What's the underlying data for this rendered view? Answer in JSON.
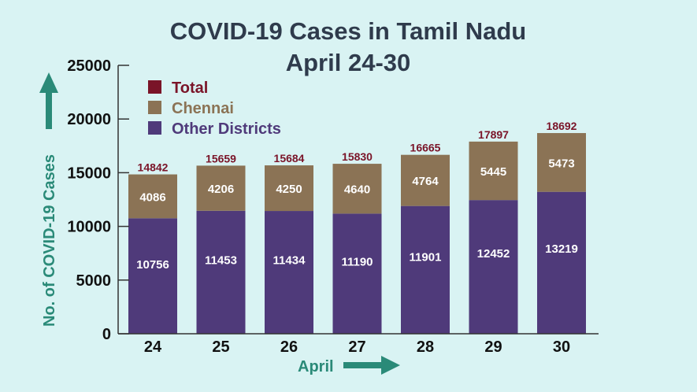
{
  "chart_data": {
    "type": "bar",
    "stacked": true,
    "title": "COVID-19 Cases in Tamil Nadu",
    "subtitle": "April 24-30",
    "xlabel": "April",
    "ylabel": "No. of COVID-19 Cases",
    "categories": [
      "24",
      "25",
      "26",
      "27",
      "28",
      "29",
      "30"
    ],
    "ylim": [
      0,
      25000
    ],
    "yticks": [
      "0",
      "5000",
      "10000",
      "15000",
      "20000",
      "25000"
    ],
    "legend_position": "top-left",
    "series": [
      {
        "name": "Other Districts",
        "color": "#4f3a7a",
        "values": [
          10756,
          11453,
          11434,
          11190,
          11901,
          12452,
          13219
        ]
      },
      {
        "name": "Chennai",
        "color": "#8b7355",
        "values": [
          4086,
          4206,
          4250,
          4640,
          4764,
          5445,
          5473
        ]
      }
    ],
    "totals": {
      "name": "Total",
      "color": "#7a1428",
      "values": [
        14842,
        15659,
        15684,
        15830,
        16665,
        17897,
        18692
      ]
    },
    "grid": false
  }
}
